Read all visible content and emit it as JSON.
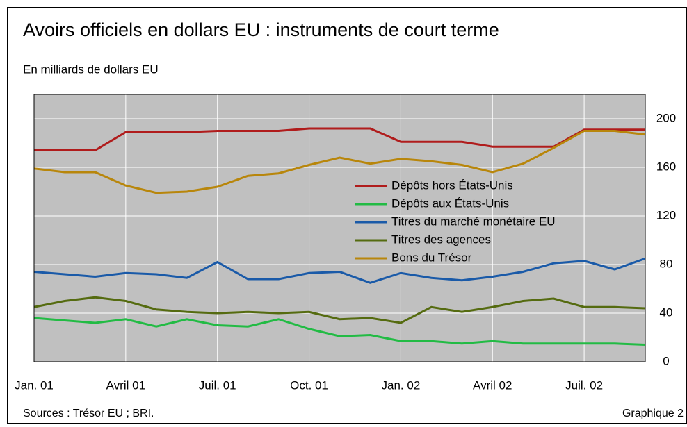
{
  "chart_data": {
    "type": "line",
    "title": "Avoirs officiels en dollars EU : instruments de court terme",
    "subtitle": "En milliards de dollars EU",
    "source": "Sources : Trésor EU ; BRI.",
    "figure_label": "Graphique 2",
    "categories": [
      "Jan. 01",
      null,
      null,
      "Avril 01",
      null,
      null,
      "Juil. 01",
      null,
      null,
      "Oct. 01",
      null,
      null,
      "Jan. 02",
      null,
      null,
      "Avril 02",
      null,
      null,
      "Juil. 02",
      null,
      null
    ],
    "series": [
      {
        "name": "Dépôts hors États-Unis",
        "color": "#b01c1c",
        "values": [
          174,
          174,
          174,
          189,
          189,
          189,
          190,
          190,
          190,
          192,
          192,
          192,
          181,
          181,
          181,
          177,
          177,
          177,
          191,
          191,
          191
        ]
      },
      {
        "name": "Dépôts aux États-Unis",
        "color": "#22bb44",
        "values": [
          36,
          34,
          32,
          35,
          29,
          35,
          30,
          29,
          35,
          27,
          21,
          22,
          17,
          17,
          15,
          17,
          15,
          15,
          15,
          15,
          14
        ]
      },
      {
        "name": "Titres du marché monétaire EU",
        "color": "#1a5aa8",
        "values": [
          74,
          72,
          70,
          73,
          72,
          69,
          82,
          68,
          68,
          73,
          74,
          65,
          73,
          69,
          67,
          70,
          74,
          81,
          83,
          76,
          85
        ]
      },
      {
        "name": "Titres des agences",
        "color": "#556b10",
        "values": [
          45,
          50,
          53,
          50,
          43,
          41,
          40,
          41,
          40,
          41,
          35,
          36,
          32,
          45,
          41,
          45,
          50,
          52,
          45,
          45,
          44
        ]
      },
      {
        "name": "Bons du Trésor",
        "color": "#b8860b",
        "values": [
          159,
          156,
          156,
          145,
          139,
          140,
          144,
          153,
          155,
          162,
          168,
          163,
          167,
          165,
          162,
          156,
          163,
          176,
          190,
          190,
          187
        ]
      }
    ],
    "ylim": [
      0,
      220
    ],
    "yticks": [
      0,
      40,
      80,
      120,
      160,
      200
    ],
    "grid": true,
    "legend": "center-right"
  }
}
